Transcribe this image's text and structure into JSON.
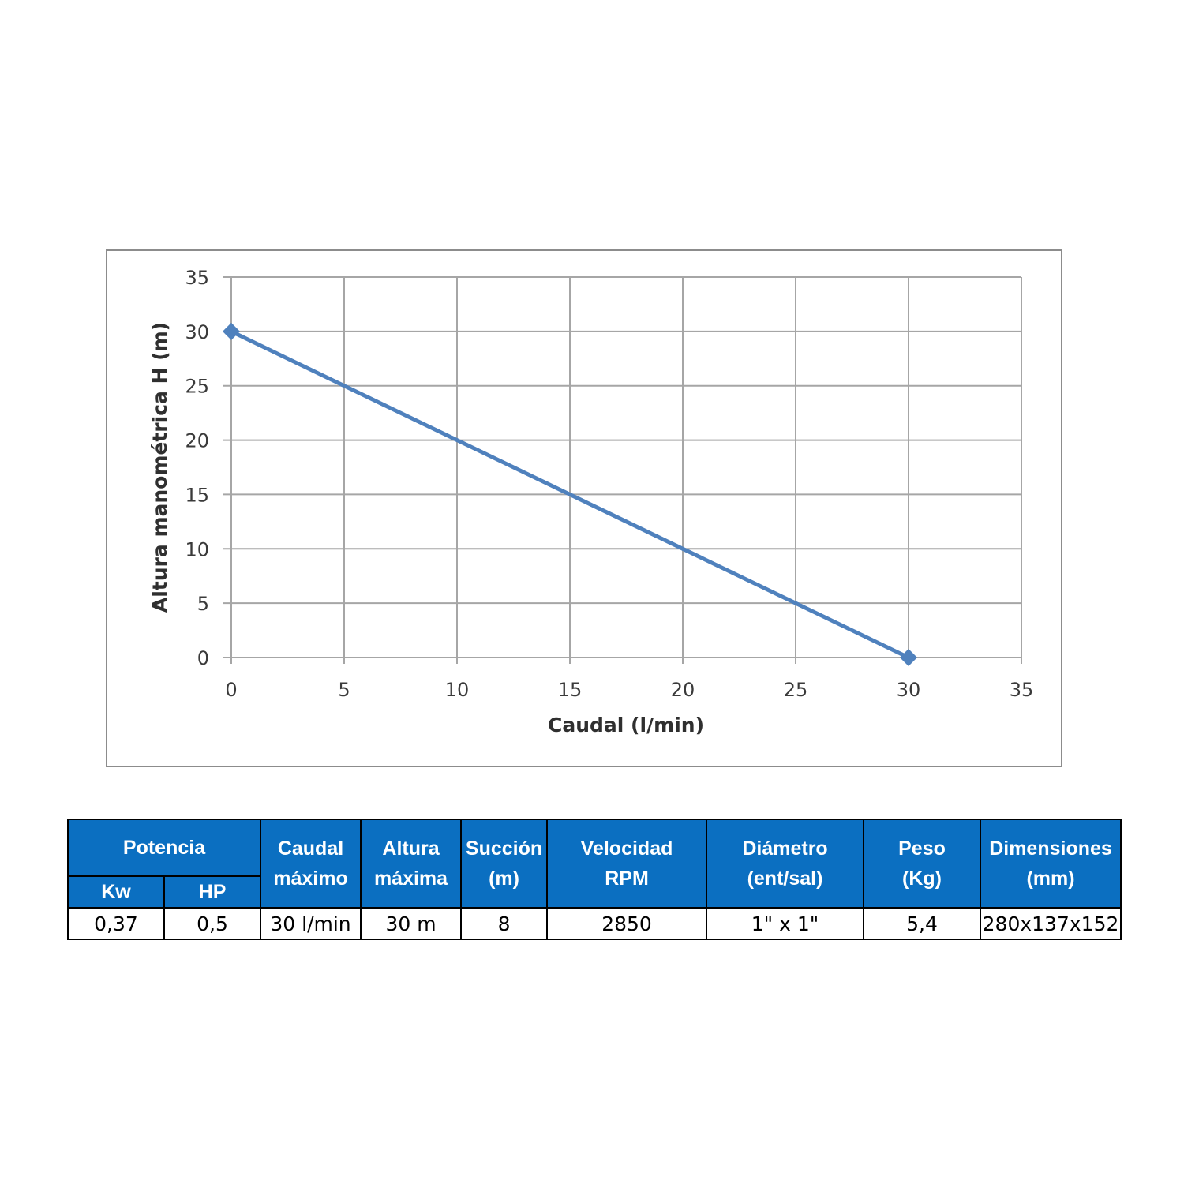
{
  "chart_data": {
    "type": "line",
    "title": "",
    "xlabel": "Caudal (l/min)",
    "ylabel": "Altura manométrica H (m)",
    "xlim": [
      0,
      35
    ],
    "ylim": [
      0,
      35
    ],
    "xticks": [
      "0",
      "5",
      "10",
      "15",
      "20",
      "25",
      "30",
      "35"
    ],
    "yticks": [
      "0",
      "5",
      "10",
      "15",
      "20",
      "25",
      "30",
      "35"
    ],
    "grid": true,
    "legend": "none",
    "color": "#4f81bd",
    "series": [
      {
        "x": [
          0,
          30
        ],
        "y": [
          30,
          0
        ],
        "marker": "diamond"
      }
    ]
  },
  "table": {
    "headers": {
      "potencia": "Potencia",
      "kw": "Kw",
      "hp": "HP",
      "caudal": [
        "Caudal",
        "máximo"
      ],
      "altura": [
        "Altura",
        "máxima"
      ],
      "succion": [
        "Succión",
        "(m)"
      ],
      "velocidad": [
        "Velocidad",
        "RPM"
      ],
      "diametro": [
        "Diámetro",
        "(ent/sal)"
      ],
      "peso": [
        "Peso",
        "(Kg)"
      ],
      "dimensiones": [
        "Dimensiones",
        "(mm)"
      ]
    },
    "row": {
      "kw": "0,37",
      "hp": "0,5",
      "caudal": "30 l/min",
      "altura": "30 m",
      "succion": "8",
      "velocidad": "2850",
      "diametro": "1\" x 1\"",
      "peso": "5,4",
      "dimensiones": "280x137x152"
    },
    "header_color": "#0b6fc1"
  }
}
